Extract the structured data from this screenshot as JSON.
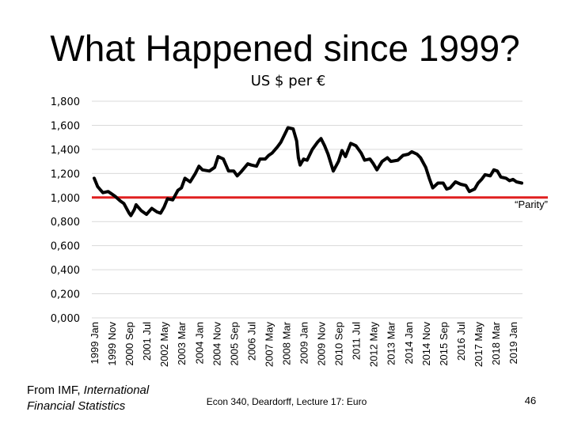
{
  "slide": {
    "title": "What Happened since 1999?",
    "source_prefix": "From IMF, ",
    "source_italic": "International Financial Statistics",
    "footer": "Econ 340, Deardorff, Lecture 17: Euro",
    "page_number": "46"
  },
  "chart_data": {
    "type": "line",
    "title": "US $ per €",
    "xlabel": "",
    "ylabel": "",
    "ylim": [
      0,
      1.8
    ],
    "y_ticks": [
      0,
      0.2,
      0.4,
      0.6,
      0.8,
      1.0,
      1.2,
      1.4,
      1.6,
      1.8
    ],
    "y_tick_labels": [
      "0,000",
      "0,200",
      "0,400",
      "0,600",
      "0,800",
      "1,000",
      "1,200",
      "1,400",
      "1,600",
      "1,800"
    ],
    "x_tick_labels": [
      "1999 Jan",
      "1999 Nov",
      "2000 Sep",
      "2001 Jul",
      "2002 May",
      "2003 Mar",
      "2004 Jan",
      "2004 Nov",
      "2005 Sep",
      "2006 Jul",
      "2007 May",
      "2008 Mar",
      "2009 Jan",
      "2009 Nov",
      "2010 Sep",
      "2011 Jul",
      "2012 May",
      "2013 Mar",
      "2014 Jan",
      "2014 Nov",
      "2015 Sep",
      "2016 Jul",
      "2017 May",
      "2018 Mar",
      "2019 Jan"
    ],
    "grid": true,
    "series": [
      {
        "color": "#000000",
        "x": [
          "1999 Jan",
          "1999 Mar",
          "1999 Jun",
          "1999 Sep",
          "1999 Nov",
          "2000 Jan",
          "2000 Apr",
          "2000 Jun",
          "2000 Sep",
          "2000 Oct",
          "2000 Dec",
          "2001 Jan",
          "2001 Apr",
          "2001 Jul",
          "2001 Oct",
          "2002 Jan",
          "2002 Mar",
          "2002 May",
          "2002 Jul",
          "2002 Oct",
          "2003 Jan",
          "2003 Mar",
          "2003 May",
          "2003 Aug",
          "2003 Nov",
          "2004 Jan",
          "2004 Mar",
          "2004 Jul",
          "2004 Oct",
          "2004 Dec",
          "2005 Mar",
          "2005 Jun",
          "2005 Sep",
          "2005 Nov",
          "2006 Jan",
          "2006 May",
          "2006 Jul",
          "2006 Oct",
          "2006 Dec",
          "2007 Mar",
          "2007 May",
          "2007 Jul",
          "2007 Oct",
          "2007 Dec",
          "2008 Mar",
          "2008 Apr",
          "2008 Jul",
          "2008 Sep",
          "2008 Oct",
          "2008 Nov",
          "2009 Jan",
          "2009 Mar",
          "2009 Jun",
          "2009 Sep",
          "2009 Nov",
          "2010 Jan",
          "2010 Mar",
          "2010 Jun",
          "2010 Sep",
          "2010 Nov",
          "2011 Jan",
          "2011 Apr",
          "2011 Jul",
          "2011 Oct",
          "2011 Dec",
          "2012 Mar",
          "2012 May",
          "2012 Jul",
          "2012 Oct",
          "2013 Jan",
          "2013 Mar",
          "2013 Jul",
          "2013 Oct",
          "2014 Jan",
          "2014 Mar",
          "2014 Jun",
          "2014 Aug",
          "2014 Nov",
          "2015 Jan",
          "2015 Mar",
          "2015 Jun",
          "2015 Sep",
          "2015 Nov",
          "2016 Jan",
          "2016 Apr",
          "2016 Jul",
          "2016 Oct",
          "2016 Dec",
          "2017 Mar",
          "2017 May",
          "2017 Jul",
          "2017 Sep",
          "2017 Dec",
          "2018 Feb",
          "2018 Apr",
          "2018 Jun",
          "2018 Sep",
          "2018 Nov",
          "2019 Jan",
          "2019 Mar",
          "2019 Jun"
        ],
        "values": [
          1.16,
          1.09,
          1.04,
          1.05,
          1.03,
          1.01,
          0.97,
          0.95,
          0.87,
          0.85,
          0.9,
          0.94,
          0.89,
          0.86,
          0.91,
          0.88,
          0.87,
          0.92,
          0.99,
          0.98,
          1.06,
          1.08,
          1.16,
          1.13,
          1.2,
          1.26,
          1.23,
          1.22,
          1.25,
          1.34,
          1.32,
          1.22,
          1.22,
          1.18,
          1.21,
          1.28,
          1.27,
          1.26,
          1.32,
          1.32,
          1.35,
          1.37,
          1.42,
          1.46,
          1.55,
          1.58,
          1.57,
          1.47,
          1.33,
          1.27,
          1.32,
          1.31,
          1.4,
          1.46,
          1.49,
          1.43,
          1.36,
          1.22,
          1.3,
          1.39,
          1.34,
          1.45,
          1.43,
          1.37,
          1.31,
          1.32,
          1.28,
          1.23,
          1.3,
          1.33,
          1.3,
          1.31,
          1.35,
          1.36,
          1.38,
          1.36,
          1.33,
          1.25,
          1.16,
          1.08,
          1.12,
          1.12,
          1.07,
          1.08,
          1.13,
          1.11,
          1.1,
          1.05,
          1.07,
          1.12,
          1.15,
          1.19,
          1.18,
          1.23,
          1.22,
          1.17,
          1.16,
          1.14,
          1.15,
          1.13,
          1.12
        ]
      }
    ],
    "reference_line": {
      "value": 1.0,
      "label": "“Parity”",
      "color": "#e02020"
    }
  }
}
